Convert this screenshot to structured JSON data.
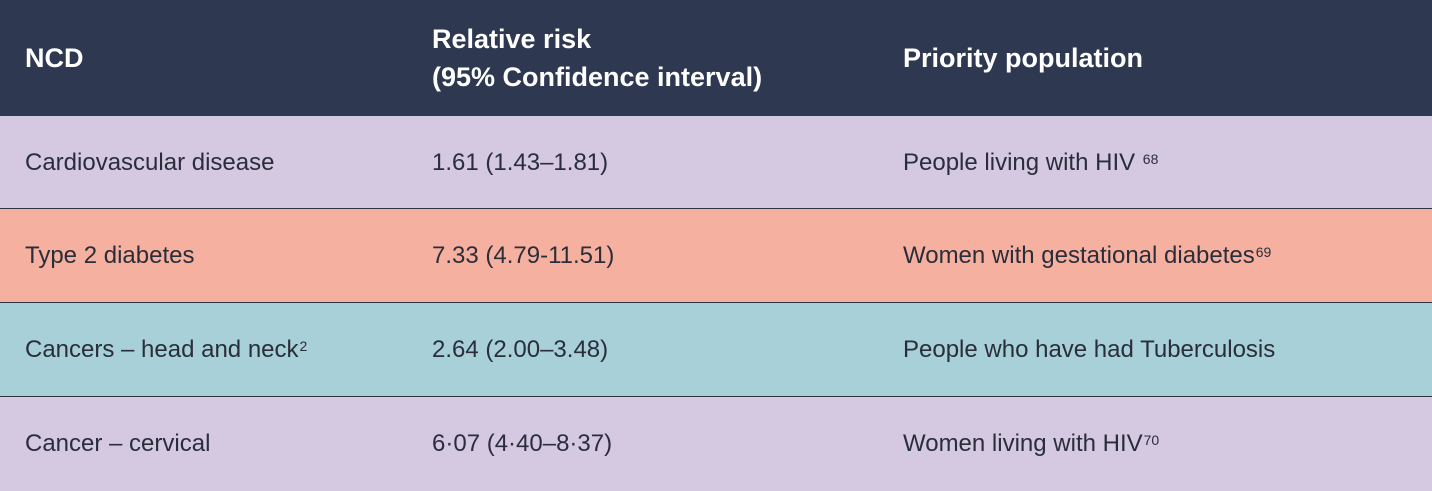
{
  "table": {
    "headers": {
      "ncd": "NCD",
      "relative_risk_line1": "Relative risk",
      "relative_risk_line2": "(95% Confidence interval)",
      "priority_population": "Priority population"
    },
    "rows": [
      {
        "ncd": "Cardiovascular disease",
        "ncd_ref": "",
        "relative_risk": "1.61 (1.43–1.81)",
        "population": "People living with HIV",
        "population_ref": "68"
      },
      {
        "ncd": "Type 2 diabetes",
        "ncd_ref": "",
        "relative_risk": "7.33 (4.79-11.51)",
        "population": "Women with gestational diabetes",
        "population_ref": "69"
      },
      {
        "ncd": "Cancers – head and neck",
        "ncd_ref": "2",
        "relative_risk": "2.64 (2.00–3.48)",
        "population": "People who have had Tuberculosis",
        "population_ref": ""
      },
      {
        "ncd": "Cancer – cervical",
        "ncd_ref": "",
        "relative_risk": "6·07 (4·40–8·37)",
        "population": "Women living with HIV",
        "population_ref": "70"
      }
    ],
    "colors": {
      "header_bg": "#2e3850",
      "row_purple": "#d5c8e1",
      "row_salmon": "#f6b09f",
      "row_teal": "#a7d0d9",
      "text": "#2a2e3a"
    }
  }
}
